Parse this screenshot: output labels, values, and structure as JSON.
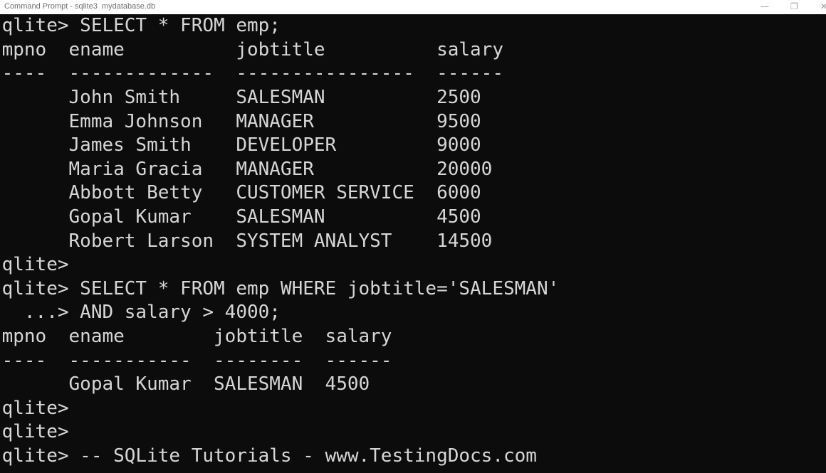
{
  "window": {
    "title": "Command Prompt - sqlite3  mydatabase.db"
  },
  "console": {
    "lines": [
      "qlite> SELECT * FROM emp;",
      "mpno  ename          jobtitle          salary",
      "----  -------------  ----------------  ------",
      "      John Smith     SALESMAN          2500",
      "      Emma Johnson   MANAGER           9500",
      "      James Smith    DEVELOPER         9000",
      "      Maria Gracia   MANAGER           20000",
      "      Abbott Betty   CUSTOMER SERVICE  6000",
      "      Gopal Kumar    SALESMAN          4500",
      "      Robert Larson  SYSTEM ANALYST    14500",
      "qlite>",
      "qlite> SELECT * FROM emp WHERE jobtitle='SALESMAN'",
      "  ...> AND salary > 4000;",
      "mpno  ename        jobtitle  salary",
      "----  -----------  --------  ------",
      "      Gopal Kumar  SALESMAN  4500",
      "qlite>",
      "qlite>",
      "qlite> -- SQLite Tutorials - www.TestingDocs.com"
    ]
  }
}
